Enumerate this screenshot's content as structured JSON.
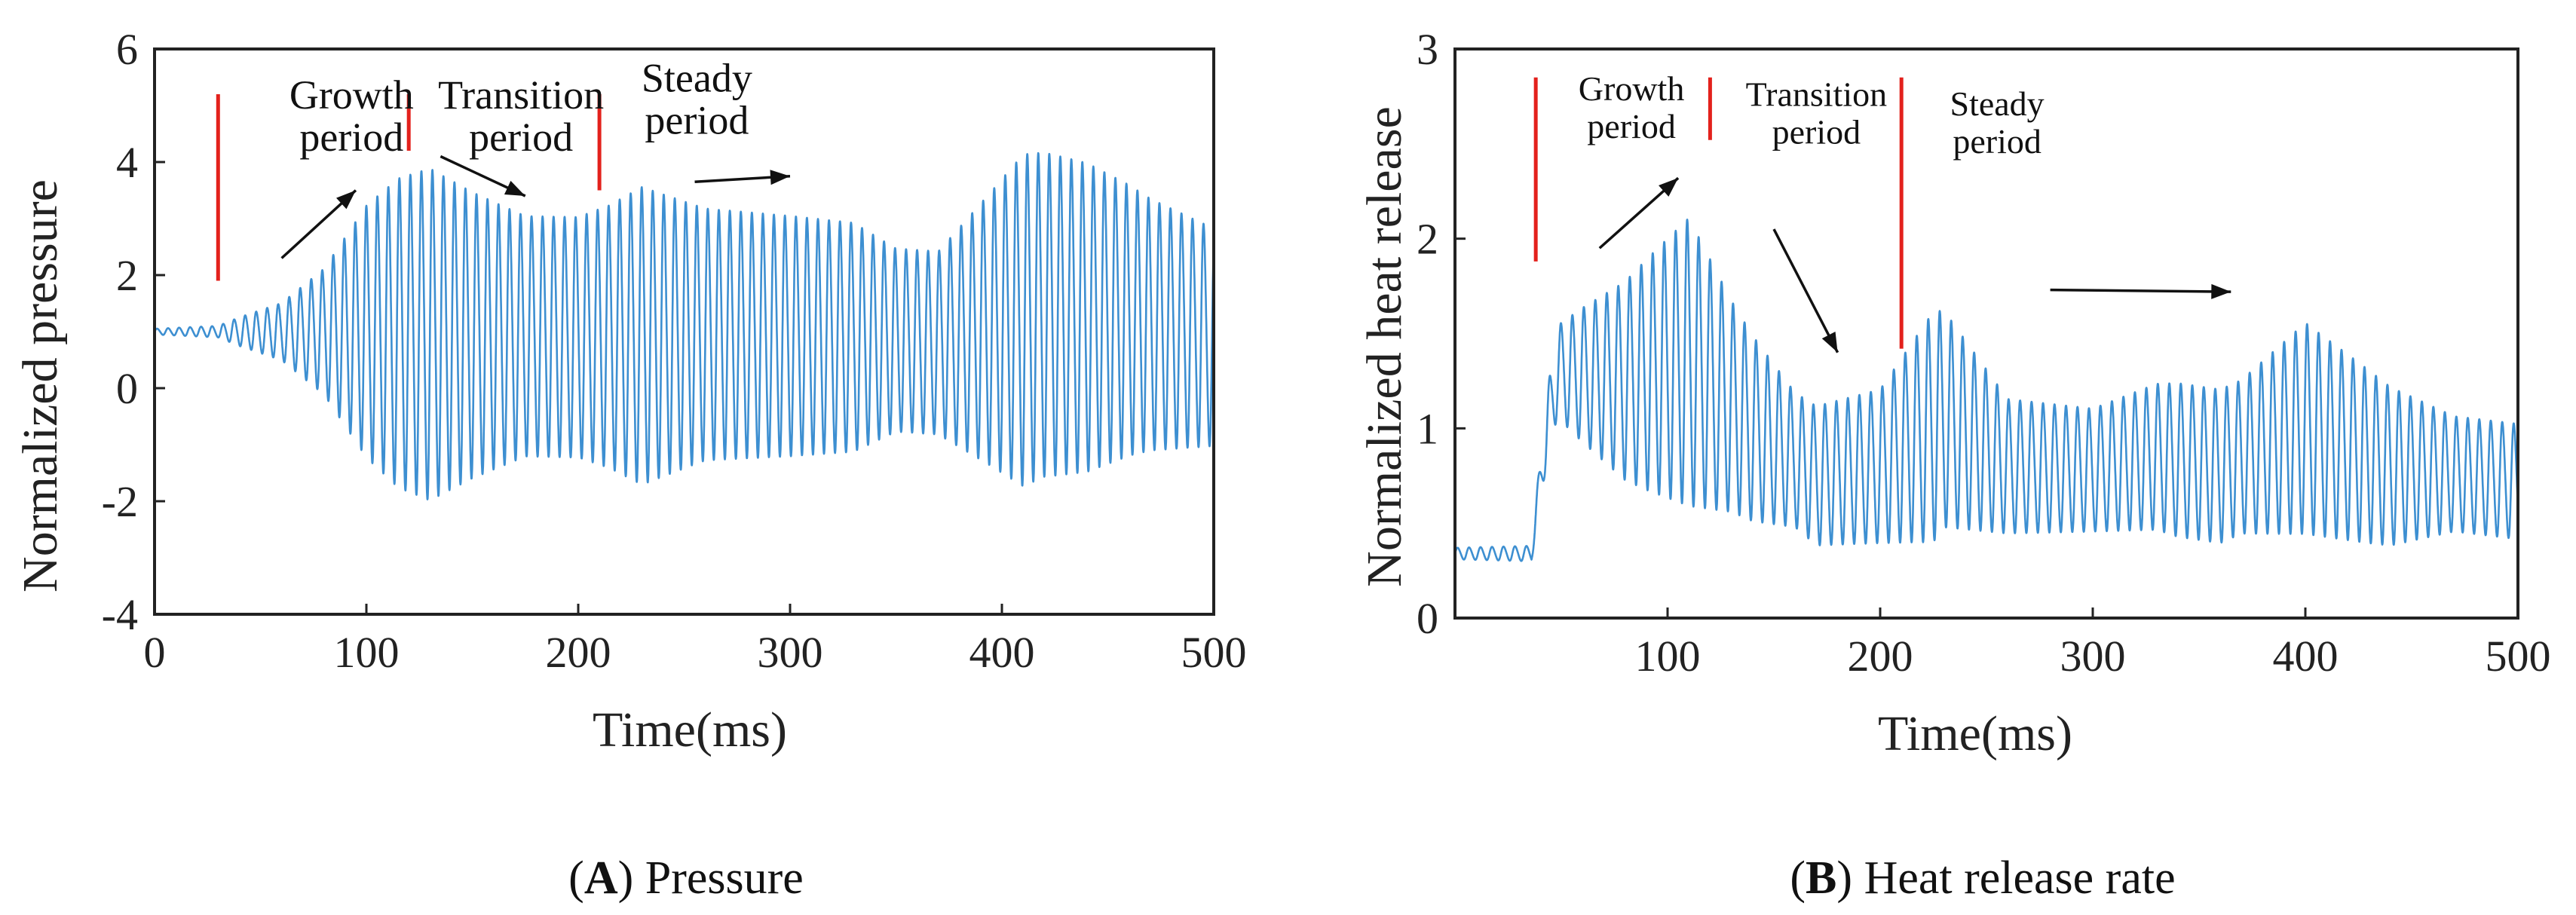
{
  "chart_data": [
    {
      "id": "A",
      "type": "line",
      "ylabel": "Normalized pressure",
      "xlabel": "Time(ms)",
      "xlim": [
        0,
        500
      ],
      "ylim": [
        -4,
        6
      ],
      "xticks": [
        0,
        100,
        200,
        300,
        400,
        500
      ],
      "xtick_labels": [
        "0",
        "100",
        "200",
        "300",
        "400",
        "500"
      ],
      "yticks": [
        -4,
        -2,
        0,
        2,
        4,
        6
      ],
      "ytick_labels": [
        "-4",
        "-2",
        "0",
        "2",
        "4",
        "6"
      ],
      "grid": false,
      "color": "#3d8fd1",
      "signal": {
        "t_start": 0,
        "t_end": 500,
        "period_ms": 5.2,
        "mean": [
          [
            0,
            1.0
          ],
          [
            30,
            1.0
          ],
          [
            60,
            1.0
          ],
          [
            100,
            1.0
          ],
          [
            130,
            0.95
          ],
          [
            200,
            0.9
          ],
          [
            260,
            0.95
          ],
          [
            330,
            0.9
          ],
          [
            370,
            0.8
          ],
          [
            420,
            1.3
          ],
          [
            460,
            1.2
          ],
          [
            500,
            0.9
          ]
        ],
        "amplitude": [
          [
            0,
            0.05
          ],
          [
            30,
            0.1
          ],
          [
            40,
            0.25
          ],
          [
            60,
            0.5
          ],
          [
            80,
            1.1
          ],
          [
            100,
            2.2
          ],
          [
            115,
            2.7
          ],
          [
            130,
            2.9
          ],
          [
            150,
            2.5
          ],
          [
            175,
            2.1
          ],
          [
            200,
            2.1
          ],
          [
            215,
            2.3
          ],
          [
            230,
            2.6
          ],
          [
            260,
            2.2
          ],
          [
            300,
            2.1
          ],
          [
            330,
            2.0
          ],
          [
            350,
            1.6
          ],
          [
            370,
            1.6
          ],
          [
            395,
            2.4
          ],
          [
            410,
            2.9
          ],
          [
            440,
            2.7
          ],
          [
            470,
            2.2
          ],
          [
            500,
            1.9
          ]
        ]
      },
      "phase_markers": [
        {
          "x": 30,
          "y0": 1.9,
          "y1": 5.2
        },
        {
          "x": 120,
          "y0": 4.2,
          "y1": 5.2
        },
        {
          "x": 210,
          "y0": 3.5,
          "y1": 5.2
        }
      ],
      "annotations": [
        {
          "lines": [
            "Growth",
            "period"
          ],
          "x": 93,
          "y": 4.95
        },
        {
          "lines": [
            "Transition",
            "period"
          ],
          "x": 173,
          "y": 4.95
        },
        {
          "lines": [
            "Steady",
            "period"
          ],
          "x": 256,
          "y": 5.25
        }
      ],
      "arrows": [
        {
          "from": [
            60,
            2.3
          ],
          "to": [
            95,
            3.5
          ]
        },
        {
          "from": [
            135,
            4.1
          ],
          "to": [
            175,
            3.4
          ]
        },
        {
          "from": [
            255,
            3.65
          ],
          "to": [
            300,
            3.75
          ]
        }
      ],
      "caption": {
        "letter": "A",
        "text": "Pressure"
      }
    },
    {
      "id": "B",
      "type": "line",
      "ylabel": "Normalized  heat release",
      "xlabel": "Time(ms)",
      "xlim": [
        0,
        500
      ],
      "ylim": [
        0,
        3
      ],
      "xticks": [
        100,
        200,
        300,
        400,
        500
      ],
      "xtick_labels": [
        "100",
        "200",
        "300",
        "400",
        "500"
      ],
      "yticks": [
        0,
        1,
        2,
        3
      ],
      "ytick_labels": [
        "0",
        "1",
        "2",
        "3"
      ],
      "grid": false,
      "color": "#3d8fd1",
      "signal": {
        "t_start": 0,
        "t_end": 500,
        "period_ms": 5.4,
        "mean": [
          [
            0,
            0.34
          ],
          [
            36,
            0.34
          ],
          [
            42,
            0.9
          ],
          [
            48,
            1.3
          ],
          [
            80,
            1.25
          ],
          [
            110,
            1.35
          ],
          [
            140,
            1.0
          ],
          [
            170,
            0.75
          ],
          [
            200,
            0.8
          ],
          [
            230,
            1.05
          ],
          [
            260,
            0.8
          ],
          [
            300,
            0.78
          ],
          [
            330,
            0.85
          ],
          [
            360,
            0.8
          ],
          [
            400,
            1.0
          ],
          [
            440,
            0.8
          ],
          [
            500,
            0.72
          ]
        ],
        "amplitude": [
          [
            0,
            0.03
          ],
          [
            36,
            0.04
          ],
          [
            44,
            0.2
          ],
          [
            60,
            0.35
          ],
          [
            90,
            0.6
          ],
          [
            110,
            0.75
          ],
          [
            130,
            0.55
          ],
          [
            160,
            0.35
          ],
          [
            200,
            0.4
          ],
          [
            225,
            0.6
          ],
          [
            260,
            0.35
          ],
          [
            300,
            0.32
          ],
          [
            340,
            0.4
          ],
          [
            370,
            0.4
          ],
          [
            400,
            0.55
          ],
          [
            430,
            0.45
          ],
          [
            470,
            0.3
          ],
          [
            500,
            0.3
          ]
        ]
      },
      "phase_markers": [
        {
          "x": 38,
          "y0": 1.88,
          "y1": 2.85
        },
        {
          "x": 120,
          "y0": 2.52,
          "y1": 2.85
        },
        {
          "x": 210,
          "y0": 1.42,
          "y1": 2.85
        }
      ],
      "annotations": [
        {
          "lines": [
            "Growth",
            "period"
          ],
          "x": 83,
          "y": 2.73
        },
        {
          "lines": [
            "Transition",
            "period"
          ],
          "x": 170,
          "y": 2.7
        },
        {
          "lines": [
            "Steady",
            "period"
          ],
          "x": 255,
          "y": 2.65
        }
      ],
      "arrows": [
        {
          "from": [
            68,
            1.95
          ],
          "to": [
            105,
            2.32
          ]
        },
        {
          "from": [
            150,
            2.05
          ],
          "to": [
            180,
            1.4
          ]
        },
        {
          "from": [
            280,
            1.73
          ],
          "to": [
            365,
            1.72
          ]
        }
      ],
      "caption": {
        "letter": "B",
        "text": "Heat release rate"
      }
    }
  ]
}
